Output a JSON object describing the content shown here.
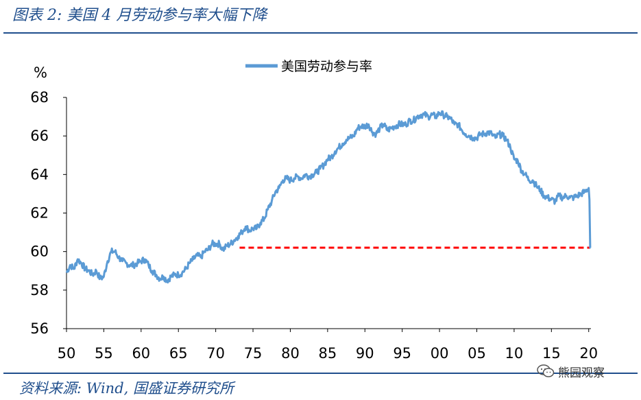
{
  "figure_title": "图表 2: 美国 4 月劳动参与率大幅下降",
  "source_note": "资料来源: Wind, 国盛证券研究所",
  "watermark": {
    "text": "熊园观察",
    "icon": "wechat-icon"
  },
  "colors": {
    "series": "#5b9bd5",
    "reference": "#ff0000",
    "accent": "#1f4e8c"
  },
  "chart_data": {
    "type": "line",
    "ylabel": "%",
    "ylim": [
      56,
      68
    ],
    "yticks": [
      56,
      58,
      60,
      62,
      64,
      66,
      68
    ],
    "xlim": [
      1950,
      2020.3
    ],
    "xticks": [
      1950,
      1955,
      1960,
      1965,
      1970,
      1975,
      1980,
      1985,
      1990,
      1995,
      2000,
      2005,
      2010,
      2015,
      2020
    ],
    "xtick_labels": [
      "50",
      "55",
      "60",
      "65",
      "70",
      "75",
      "80",
      "85",
      "90",
      "95",
      "00",
      "05",
      "10",
      "15",
      "20"
    ],
    "legend": "top-center",
    "grid": false,
    "series": [
      {
        "name": "美国劳动参与率",
        "color": "#5b9bd5",
        "x": [
          1950.0,
          1950.5,
          1951.0,
          1951.5,
          1952.0,
          1952.5,
          1953.0,
          1953.5,
          1954.0,
          1954.5,
          1955.0,
          1955.5,
          1956.0,
          1956.5,
          1957.0,
          1957.5,
          1958.0,
          1958.5,
          1959.0,
          1959.5,
          1960.0,
          1960.5,
          1961.0,
          1961.5,
          1962.0,
          1962.5,
          1963.0,
          1963.5,
          1964.0,
          1964.5,
          1965.0,
          1965.5,
          1966.0,
          1966.5,
          1967.0,
          1967.5,
          1968.0,
          1968.5,
          1969.0,
          1969.5,
          1970.0,
          1970.5,
          1971.0,
          1971.5,
          1972.0,
          1972.5,
          1973.0,
          1973.5,
          1974.0,
          1974.5,
          1975.0,
          1975.5,
          1976.0,
          1976.5,
          1977.0,
          1977.5,
          1978.0,
          1978.5,
          1979.0,
          1979.5,
          1980.0,
          1980.5,
          1981.0,
          1981.5,
          1982.0,
          1982.5,
          1983.0,
          1983.5,
          1984.0,
          1984.5,
          1985.0,
          1985.5,
          1986.0,
          1986.5,
          1987.0,
          1987.5,
          1988.0,
          1988.5,
          1989.0,
          1989.5,
          1990.0,
          1990.5,
          1991.0,
          1991.5,
          1992.0,
          1992.5,
          1993.0,
          1993.5,
          1994.0,
          1994.5,
          1995.0,
          1995.5,
          1996.0,
          1996.5,
          1997.0,
          1997.5,
          1998.0,
          1998.5,
          1999.0,
          1999.5,
          2000.0,
          2000.5,
          2001.0,
          2001.5,
          2002.0,
          2002.5,
          2003.0,
          2003.5,
          2004.0,
          2004.5,
          2005.0,
          2005.5,
          2006.0,
          2006.5,
          2007.0,
          2007.5,
          2008.0,
          2008.5,
          2009.0,
          2009.5,
          2010.0,
          2010.5,
          2011.0,
          2011.5,
          2012.0,
          2012.5,
          2013.0,
          2013.5,
          2014.0,
          2014.5,
          2015.0,
          2015.5,
          2016.0,
          2016.5,
          2017.0,
          2017.5,
          2018.0,
          2018.5,
          2019.0,
          2019.5,
          2020.0,
          2020.1,
          2020.2,
          2020.25
        ],
        "y": [
          58.9,
          59.3,
          59.1,
          59.6,
          59.4,
          59.1,
          59.0,
          58.8,
          59.0,
          58.6,
          58.7,
          59.5,
          60.0,
          60.0,
          59.7,
          59.5,
          59.4,
          59.3,
          59.3,
          59.4,
          59.5,
          59.6,
          59.3,
          59.0,
          58.8,
          58.6,
          58.7,
          58.5,
          58.7,
          58.8,
          58.8,
          58.9,
          59.1,
          59.4,
          59.6,
          59.8,
          59.7,
          60.0,
          60.1,
          60.4,
          60.4,
          60.4,
          60.1,
          60.3,
          60.4,
          60.6,
          60.8,
          61.0,
          61.3,
          61.1,
          61.2,
          61.2,
          61.5,
          61.7,
          62.2,
          62.6,
          63.1,
          63.3,
          63.7,
          63.8,
          63.7,
          63.8,
          63.9,
          63.8,
          64.0,
          63.9,
          64.0,
          64.1,
          64.3,
          64.5,
          64.8,
          64.9,
          65.2,
          65.4,
          65.6,
          65.8,
          65.9,
          66.0,
          66.4,
          66.5,
          66.5,
          66.6,
          66.2,
          66.1,
          66.4,
          66.6,
          66.3,
          66.4,
          66.5,
          66.6,
          66.6,
          66.6,
          66.8,
          66.8,
          67.0,
          67.1,
          67.1,
          67.0,
          67.1,
          67.0,
          67.2,
          67.1,
          67.0,
          66.9,
          66.6,
          66.6,
          66.3,
          66.1,
          66.0,
          65.9,
          65.9,
          66.1,
          66.1,
          66.2,
          66.1,
          65.9,
          66.1,
          66.0,
          65.8,
          65.4,
          64.8,
          64.7,
          64.2,
          64.0,
          63.7,
          63.7,
          63.4,
          63.2,
          62.9,
          62.8,
          62.7,
          62.6,
          62.9,
          62.8,
          62.9,
          62.8,
          62.8,
          62.9,
          63.0,
          63.1,
          63.3,
          62.7,
          60.2,
          60.2
        ],
        "note": "series values estimated from the plotted line"
      }
    ],
    "reference_line": {
      "y": 60.2,
      "x_start": 1973.2,
      "x_end": 2020.2,
      "style": "dashed",
      "color": "#ff0000"
    }
  }
}
